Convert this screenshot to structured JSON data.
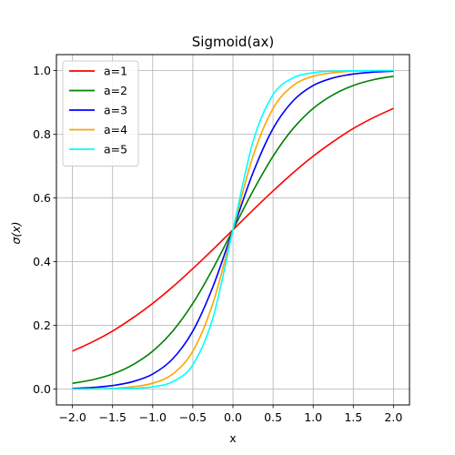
{
  "chart_data": {
    "type": "line",
    "title": "Sigmoid(ax)",
    "xlabel": "x",
    "ylabel": "σ(x)",
    "xlim": [
      -2.2,
      2.2
    ],
    "ylim": [
      -0.05,
      1.05
    ],
    "xticks": [
      -2.0,
      -1.5,
      -1.0,
      -0.5,
      0.0,
      0.5,
      1.0,
      1.5,
      2.0
    ],
    "xtick_labels": [
      "−2.0",
      "−1.5",
      "−1.0",
      "−0.5",
      "0.0",
      "0.5",
      "1.0",
      "1.5",
      "2.0"
    ],
    "yticks": [
      0.0,
      0.2,
      0.4,
      0.6,
      0.8,
      1.0
    ],
    "ytick_labels": [
      "0.0",
      "0.2",
      "0.4",
      "0.6",
      "0.8",
      "1.0"
    ],
    "grid": true,
    "legend_position": "upper-left",
    "x": [
      -2.0,
      -1.75,
      -1.5,
      -1.25,
      -1.0,
      -0.75,
      -0.5,
      -0.25,
      0.0,
      0.25,
      0.5,
      0.75,
      1.0,
      1.25,
      1.5,
      1.75,
      2.0
    ],
    "series": [
      {
        "name": "a=1",
        "color": "#ff0000",
        "values": [
          0.119,
          0.148,
          0.182,
          0.223,
          0.269,
          0.321,
          0.378,
          0.438,
          0.5,
          0.562,
          0.622,
          0.679,
          0.731,
          0.777,
          0.818,
          0.852,
          0.881
        ]
      },
      {
        "name": "a=2",
        "color": "#008000",
        "values": [
          0.018,
          0.029,
          0.047,
          0.076,
          0.119,
          0.182,
          0.269,
          0.378,
          0.5,
          0.622,
          0.731,
          0.818,
          0.881,
          0.924,
          0.953,
          0.971,
          0.982
        ]
      },
      {
        "name": "a=3",
        "color": "#0000ff",
        "values": [
          0.002,
          0.005,
          0.011,
          0.023,
          0.047,
          0.095,
          0.182,
          0.321,
          0.5,
          0.679,
          0.818,
          0.905,
          0.953,
          0.977,
          0.989,
          0.995,
          0.998
        ]
      },
      {
        "name": "a=4",
        "color": "#ffa500",
        "values": [
          0.0,
          0.001,
          0.002,
          0.007,
          0.018,
          0.047,
          0.119,
          0.269,
          0.5,
          0.731,
          0.881,
          0.953,
          0.982,
          0.993,
          0.998,
          0.999,
          1.0
        ]
      },
      {
        "name": "a=5",
        "color": "#00ffff",
        "values": [
          0.0,
          0.0,
          0.001,
          0.002,
          0.007,
          0.023,
          0.076,
          0.223,
          0.5,
          0.777,
          0.924,
          0.977,
          0.993,
          0.998,
          0.999,
          1.0,
          1.0
        ]
      }
    ]
  }
}
